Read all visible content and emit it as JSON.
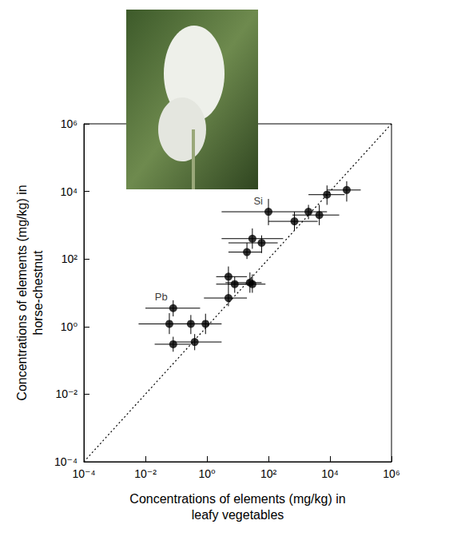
{
  "chart_data": {
    "type": "scatter",
    "xlabel": "Concentrations of elements (mg/kg) in leafy vegetables",
    "ylabel": "Concentrations of elements (mg/kg) in horse-chestnut",
    "log": true,
    "grid": false,
    "xlim": [
      0.0001,
      1000000
    ],
    "ylim": [
      0.0001,
      1000000
    ],
    "xticks": [
      {
        "value": 0.0001,
        "label": "10⁻⁴"
      },
      {
        "value": 0.01,
        "label": "10⁻²"
      },
      {
        "value": 1,
        "label": "10⁰"
      },
      {
        "value": 100,
        "label": "10²"
      },
      {
        "value": 10000,
        "label": "10⁴"
      },
      {
        "value": 1000000,
        "label": "10⁶"
      }
    ],
    "yticks": [
      {
        "value": 0.0001,
        "label": "10⁻⁴"
      },
      {
        "value": 0.01,
        "label": "10⁻²"
      },
      {
        "value": 1,
        "label": "10⁰"
      },
      {
        "value": 100,
        "label": "10²"
      },
      {
        "value": 10000,
        "label": "10⁴"
      },
      {
        "value": 1000000,
        "label": "10⁶"
      }
    ],
    "series": [
      {
        "type": "scatter",
        "color": "#000000",
        "marker": "circle",
        "x": [
          0.08,
          0.06,
          0.3,
          0.9,
          0.08,
          0.4,
          5,
          8,
          5,
          25,
          30,
          20,
          30,
          60,
          100,
          700,
          2000,
          4500,
          8000,
          35000
        ],
        "values": [
          3.5,
          1.2,
          1.2,
          1.2,
          0.3,
          0.35,
          30,
          18,
          7,
          20,
          18,
          160,
          400,
          300,
          2500,
          1300,
          2500,
          2000,
          8000,
          11000
        ],
        "x_error_min": [
          0.01,
          0.006,
          0.05,
          0.2,
          0.02,
          0.08,
          2,
          2,
          0.8,
          4,
          5,
          5,
          3,
          5,
          3,
          100,
          600,
          600,
          2000,
          8000
        ],
        "x_error_max": [
          0.6,
          0.5,
          1.5,
          3,
          0.3,
          3,
          20,
          40,
          20,
          60,
          80,
          60,
          300,
          200,
          600,
          4000,
          8000,
          20000,
          30000,
          100000
        ],
        "y_error_min": [
          2,
          0.6,
          0.6,
          0.6,
          0.18,
          0.2,
          15,
          10,
          4,
          10,
          10,
          100,
          200,
          150,
          1000,
          700,
          1500,
          1000,
          4000,
          5000
        ],
        "y_error_max": [
          6,
          2.5,
          2.2,
          2.4,
          0.5,
          0.6,
          60,
          30,
          15,
          40,
          35,
          300,
          800,
          500,
          6000,
          2500,
          4000,
          4000,
          15000,
          20000
        ]
      },
      {
        "type": "line",
        "line_style": "dotted",
        "color": "#000000",
        "x": [
          0.0001,
          1000000
        ],
        "values": [
          0.0001,
          1000000
        ]
      }
    ],
    "annotations": [
      {
        "text": "Pb",
        "series": 0,
        "point": 0
      },
      {
        "text": "Si",
        "series": 0,
        "point": 14
      }
    ]
  }
}
